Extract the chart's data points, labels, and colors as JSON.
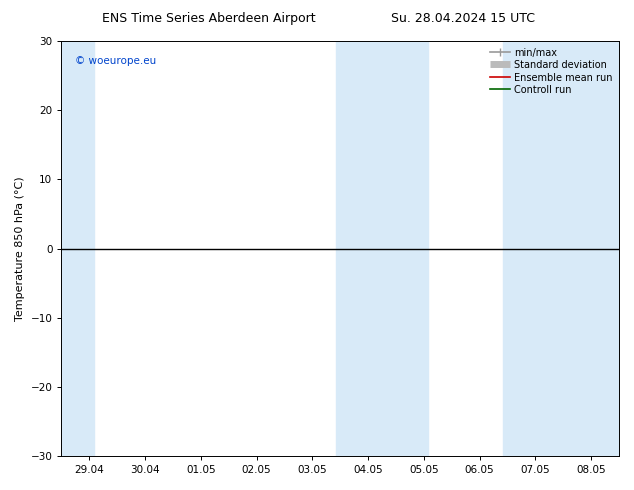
{
  "title_left": "ENS Time Series Aberdeen Airport",
  "title_right": "Su. 28.04.2024 15 UTC",
  "ylabel": "Temperature 850 hPa (°C)",
  "ylim": [
    -30,
    30
  ],
  "yticks": [
    -30,
    -20,
    -10,
    0,
    10,
    20,
    30
  ],
  "x_labels": [
    "29.04",
    "30.04",
    "01.05",
    "02.05",
    "03.05",
    "04.05",
    "05.05",
    "06.05",
    "07.05",
    "08.05"
  ],
  "x_positions": [
    0,
    1,
    2,
    3,
    4,
    5,
    6,
    7,
    8,
    9
  ],
  "xlim": [
    -0.5,
    9.5
  ],
  "watermark": "© woeurope.eu",
  "legend_entries": [
    {
      "label": "min/max",
      "color": "#999999",
      "lw": 1.2,
      "style": "line_with_cap"
    },
    {
      "label": "Standard deviation",
      "color": "#bbbbbb",
      "lw": 5,
      "style": "thick_line"
    },
    {
      "label": "Ensemble mean run",
      "color": "#cc0000",
      "lw": 1.2,
      "style": "line"
    },
    {
      "label": "Controll run",
      "color": "#006600",
      "lw": 1.2,
      "style": "line"
    }
  ],
  "shaded_regions": [
    {
      "xmin": -0.5,
      "xmax": 0.08,
      "color": "#d8eaf8"
    },
    {
      "xmin": 4.42,
      "xmax": 6.08,
      "color": "#d8eaf8"
    },
    {
      "xmin": 7.42,
      "xmax": 9.5,
      "color": "#d8eaf8"
    }
  ],
  "zero_line_color": "#000000",
  "bg_color": "#ffffff",
  "title_fontsize": 9,
  "tick_fontsize": 7.5,
  "label_fontsize": 8
}
